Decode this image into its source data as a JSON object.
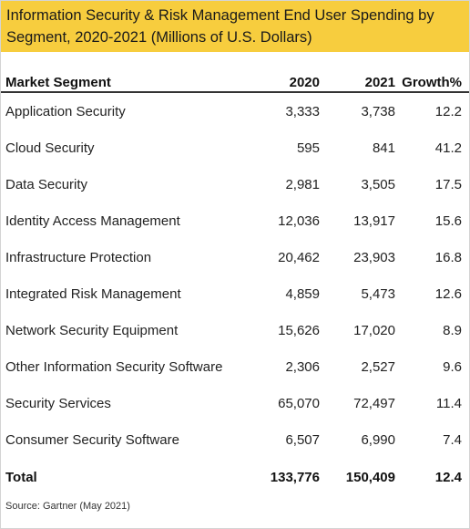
{
  "title": "Information Security & Risk Management End User Spending by Segment, 2020-2021 (Millions of U.S. Dollars)",
  "source": "Source: Gartner (May 2021)",
  "colors": {
    "banner": "#f7cd3e",
    "rule": "#333333"
  },
  "chart_data": {
    "type": "table",
    "title": "Information Security & Risk Management End User Spending by Segment, 2020-2021 (Millions of U.S. Dollars)",
    "columns": [
      "Market Segment",
      "2020",
      "2021",
      "Growth%"
    ],
    "rows": [
      [
        "Application Security",
        "3,333",
        "3,738",
        "12.2"
      ],
      [
        "Cloud Security",
        "595",
        "841",
        "41.2"
      ],
      [
        "Data Security",
        "2,981",
        "3,505",
        "17.5"
      ],
      [
        "Identity Access Management",
        "12,036",
        "13,917",
        "15.6"
      ],
      [
        "Infrastructure Protection",
        "20,462",
        "23,903",
        "16.8"
      ],
      [
        "Integrated Risk Management",
        "4,859",
        "5,473",
        "12.6"
      ],
      [
        "Network Security Equipment",
        "15,626",
        "17,020",
        "8.9"
      ],
      [
        "Other Information Security Software",
        "2,306",
        "2,527",
        "9.6"
      ],
      [
        "Security Services",
        "65,070",
        "72,497",
        "11.4"
      ],
      [
        "Consumer Security Software",
        "6,507",
        "6,990",
        "7.4"
      ]
    ],
    "total": [
      "Total",
      "133,776",
      "150,409",
      "12.4"
    ]
  }
}
